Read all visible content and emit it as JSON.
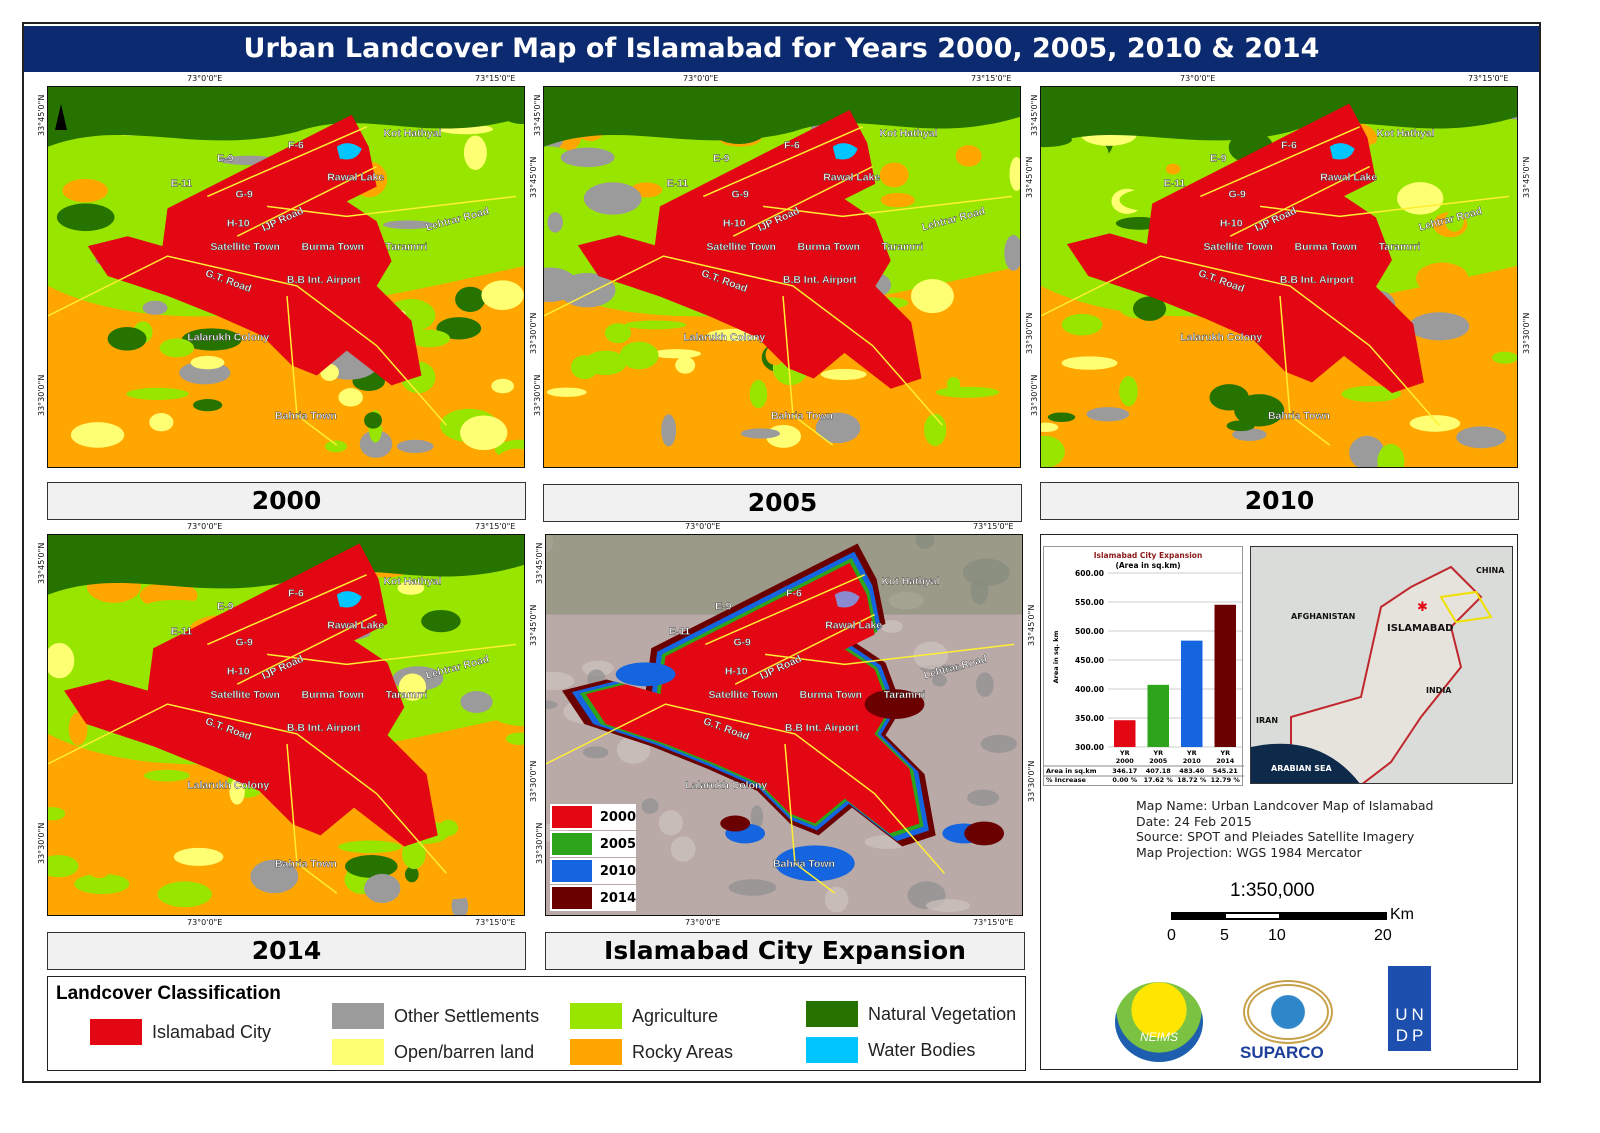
{
  "title": "Urban Landcover Map of Islamabad for Years 2000, 2005, 2010 & 2014",
  "ticks": {
    "lon1": "73°0'0\"E",
    "lon2": "73°15'0\"E",
    "lat1": "33°45'0\"N",
    "lat2": "33°30'0\"N"
  },
  "places": [
    "Kot Hathyal",
    "F-6",
    "E-9",
    "Rawal Lake",
    "E-11",
    "G-9",
    "IJP Road",
    "Lehtrar Road",
    "H-10",
    "Satellite Town",
    "Burma Town",
    "Taramrri",
    "G.T. Road",
    "B.B Int. Airport",
    "Lalarukh Colony",
    "Bahria Town"
  ],
  "panels": [
    {
      "label": "2000"
    },
    {
      "label": "2005"
    },
    {
      "label": "2010"
    },
    {
      "label": "2014"
    },
    {
      "label": "Islamabad City Expansion"
    }
  ],
  "expansion_legend": [
    {
      "year": "2000",
      "color": "#e30613"
    },
    {
      "year": "2005",
      "color": "#2ea31c"
    },
    {
      "year": "2010",
      "color": "#1565e0"
    },
    {
      "year": "2014",
      "color": "#6b0000"
    }
  ],
  "chart_data": {
    "type": "bar",
    "title": "Islamabad City Expansion",
    "subtitle": "(Area in sq.km)",
    "ylabel": "Area in sq. km",
    "ylim": [
      300,
      600
    ],
    "yticks": [
      "300.00",
      "350.00",
      "400.00",
      "450.00",
      "500.00",
      "550.00",
      "600.00"
    ],
    "categories": [
      "YR 2000",
      "YR 2005",
      "YR 2010",
      "YR 2014"
    ],
    "values": [
      346.17,
      407.18,
      483.4,
      545.21
    ],
    "colors": [
      "#e30613",
      "#2ea31c",
      "#1565e0",
      "#6b0000"
    ],
    "table": {
      "row1_label": "Area in sq.km",
      "row1": [
        "346.17",
        "407.18",
        "483.40",
        "545.21"
      ],
      "row2_label": "% Increase",
      "row2": [
        "0.00 %",
        "17.62 %",
        "18.72 %",
        "12.79 %"
      ]
    }
  },
  "inset": {
    "labels": [
      "CHINA",
      "AFGHANISTAN",
      "ISLAMABAD",
      "INDIA",
      "IRAN",
      "ARABIAN SEA"
    ]
  },
  "info": [
    "Map Name: Urban Landcover Map of Islamabad",
    "Date: 24 Feb 2015",
    "Source: SPOT and Pleiades Satellite Imagery",
    "Map Projection: WGS 1984 Mercator"
  ],
  "scale": {
    "ratio": "1:350,000",
    "unit": "Km",
    "labels": [
      "0",
      "5",
      "10",
      "20"
    ]
  },
  "logos": {
    "nfiems": "NEIMS",
    "suparco": "SUPARCO",
    "undp": "UNDP"
  },
  "legend": {
    "title": "Landcover Classification",
    "items": [
      {
        "label": "Islamabad City",
        "color": "#e30613"
      },
      {
        "label": "Other Settlements",
        "color": "#9b9b9b"
      },
      {
        "label": "Open/barren land",
        "color": "#ffff73"
      },
      {
        "label": "Agriculture",
        "color": "#98e600"
      },
      {
        "label": "Rocky Areas",
        "color": "#ffa600"
      },
      {
        "label": "Natural Vegetation",
        "color": "#267300"
      },
      {
        "label": "Water Bodies",
        "color": "#00c5ff"
      }
    ]
  }
}
